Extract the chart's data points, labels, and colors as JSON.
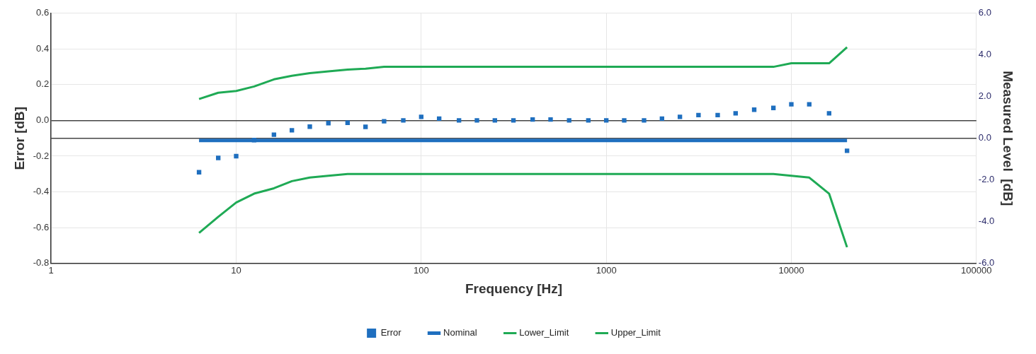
{
  "chart_data": {
    "type": "line",
    "xlabel": "Frequency [Hz]",
    "ylabel": "Error [dB]",
    "y2label": "Measured Level  [dB]",
    "x": [
      6.3,
      8,
      10,
      12.5,
      16,
      20,
      25,
      31.5,
      40,
      50,
      63,
      80,
      100,
      125,
      160,
      200,
      250,
      315,
      400,
      500,
      630,
      800,
      1000,
      1250,
      1600,
      2000,
      2500,
      3150,
      4000,
      5000,
      6300,
      8000,
      10000,
      12500,
      16000,
      20000
    ],
    "series": [
      {
        "name": "Nominal",
        "color": "#1f6fbf",
        "axis": "y2",
        "values": [
          -0.1,
          -0.1,
          -0.1,
          -0.1,
          -0.1,
          -0.1,
          -0.1,
          -0.1,
          -0.1,
          -0.1,
          -0.1,
          -0.1,
          -0.1,
          -0.1,
          -0.1,
          -0.1,
          -0.1,
          -0.1,
          -0.1,
          -0.1,
          -0.1,
          -0.1,
          -0.1,
          -0.1,
          -0.1,
          -0.1,
          -0.1,
          -0.1,
          -0.1,
          -0.1,
          -0.1,
          -0.1,
          -0.1,
          -0.1,
          -0.1,
          -0.1
        ]
      },
      {
        "name": "Error",
        "type": "scatter",
        "marker": "square",
        "color": "#1f6fbf",
        "values": [
          -0.29,
          -0.21,
          -0.2,
          -0.11,
          -0.08,
          -0.055,
          -0.035,
          -0.015,
          -0.013,
          -0.036,
          -0.005,
          0,
          0.02,
          0.01,
          0,
          0,
          0,
          0,
          0.005,
          0.005,
          0,
          0,
          0,
          0,
          0,
          0.01,
          0.02,
          0.03,
          0.03,
          0.04,
          0.06,
          0.07,
          0.09,
          0.09,
          0.04,
          -0.17
        ]
      },
      {
        "name": "Lower_Limit",
        "color": "#1faa55",
        "values": [
          -0.63,
          -0.54,
          -0.46,
          -0.41,
          -0.38,
          -0.34,
          -0.32,
          -0.31,
          -0.3,
          -0.3,
          -0.3,
          -0.3,
          -0.3,
          -0.3,
          -0.3,
          -0.3,
          -0.3,
          -0.3,
          -0.3,
          -0.3,
          -0.3,
          -0.3,
          -0.3,
          -0.3,
          -0.3,
          -0.3,
          -0.3,
          -0.3,
          -0.3,
          -0.3,
          -0.3,
          -0.3,
          -0.31,
          -0.32,
          -0.41,
          -0.71
        ]
      },
      {
        "name": "Upper_Limit",
        "color": "#1faa55",
        "values": [
          0.12,
          0.155,
          0.165,
          0.19,
          0.23,
          0.25,
          0.265,
          0.275,
          0.285,
          0.29,
          0.3,
          0.3,
          0.3,
          0.3,
          0.3,
          0.3,
          0.3,
          0.3,
          0.3,
          0.3,
          0.3,
          0.3,
          0.3,
          0.3,
          0.3,
          0.3,
          0.3,
          0.3,
          0.3,
          0.3,
          0.3,
          0.3,
          0.32,
          0.32,
          0.32,
          0.41
        ]
      }
    ],
    "log": "x",
    "xlim": [
      1,
      100000
    ],
    "xticks": [
      1,
      10,
      100,
      1000,
      10000,
      100000
    ],
    "ylim": [
      -0.8,
      0.6
    ],
    "yticks": [
      {
        "value": -0.8,
        "label": "-0.8"
      },
      {
        "value": -0.6,
        "label": "-0.6"
      },
      {
        "value": -0.4,
        "label": "-0.4"
      },
      {
        "value": -0.2,
        "label": "-0.2"
      },
      {
        "value": 0,
        "label": "0.0"
      },
      {
        "value": 0.2,
        "label": "0.2"
      },
      {
        "value": 0.4,
        "label": "0.4"
      },
      {
        "value": 0.6,
        "label": "0.6"
      }
    ],
    "y2lim": [
      -6,
      6
    ],
    "y2ticks": [
      {
        "value": -6,
        "label": "-6.0"
      },
      {
        "value": -4,
        "label": "-4.0"
      },
      {
        "value": -2,
        "label": "-2.0"
      },
      {
        "value": 0,
        "label": "0.0"
      },
      {
        "value": 2,
        "label": "2.0"
      },
      {
        "value": 4,
        "label": "4.0"
      },
      {
        "value": 6,
        "label": "6.0"
      }
    ],
    "grid": true,
    "legend": "bottom"
  }
}
